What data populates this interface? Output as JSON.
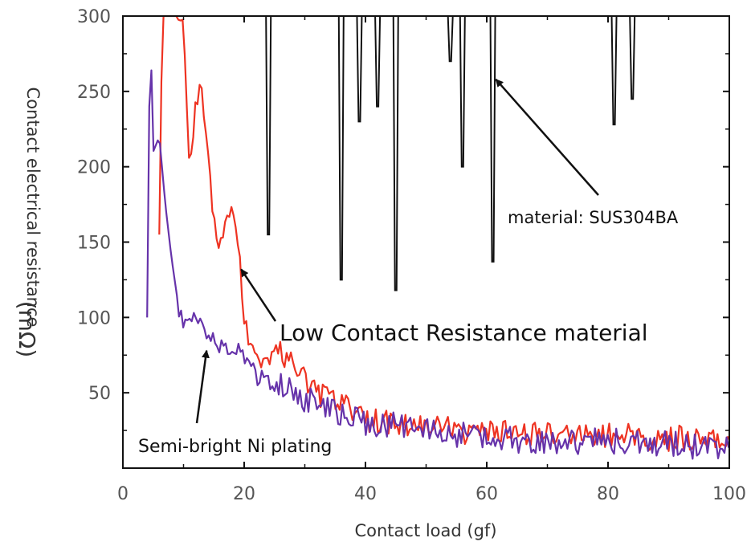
{
  "chart_data": {
    "type": "line",
    "title": "",
    "xlabel": "Contact load (gf)",
    "ylabel": "Contact electrical resistance",
    "ylabel_unit": "(mΩ)",
    "xlim": [
      0,
      100
    ],
    "ylim": [
      0,
      300
    ],
    "x_ticks": [
      "0",
      "20",
      "40",
      "60",
      "80",
      "100"
    ],
    "y_ticks": [
      "50",
      "100",
      "150",
      "200",
      "250",
      "300"
    ],
    "grid": false,
    "series": [
      {
        "key": "sus",
        "color": "#111111",
        "dips": [
          [
            24,
            155
          ],
          [
            36,
            125
          ],
          [
            39,
            230
          ],
          [
            42,
            240
          ],
          [
            45,
            118
          ],
          [
            54,
            270
          ],
          [
            56,
            200
          ],
          [
            61,
            137
          ],
          [
            81,
            228
          ],
          [
            84,
            245
          ]
        ]
      },
      {
        "key": "lcr",
        "color": "#ee3322",
        "points": [
          [
            6,
            155
          ],
          [
            6.5,
            300
          ],
          [
            10,
            300
          ],
          [
            11,
            198
          ],
          [
            12,
            240
          ],
          [
            13,
            255
          ],
          [
            14,
            208
          ],
          [
            15,
            163
          ],
          [
            16,
            148
          ],
          [
            17,
            160
          ],
          [
            18,
            170
          ],
          [
            19,
            150
          ],
          [
            20,
            100
          ],
          [
            21,
            78
          ],
          [
            23,
            72
          ],
          [
            25,
            80
          ],
          [
            28,
            68
          ],
          [
            30,
            60
          ],
          [
            32,
            50
          ],
          [
            35,
            44
          ],
          [
            38,
            38
          ],
          [
            40,
            33
          ],
          [
            45,
            30
          ],
          [
            50,
            27
          ],
          [
            55,
            25
          ],
          [
            60,
            23
          ],
          [
            70,
            22
          ],
          [
            80,
            22
          ],
          [
            90,
            20
          ],
          [
            100,
            20
          ]
        ]
      },
      {
        "key": "ni",
        "color": "#6633aa",
        "points": [
          [
            4,
            100
          ],
          [
            4.5,
            300
          ],
          [
            5,
            210
          ],
          [
            6,
            220
          ],
          [
            7,
            175
          ],
          [
            8,
            140
          ],
          [
            9,
            112
          ],
          [
            10,
            90
          ],
          [
            11,
            100
          ],
          [
            12,
            96
          ],
          [
            13,
            102
          ],
          [
            14,
            88
          ],
          [
            16,
            80
          ],
          [
            18,
            82
          ],
          [
            20,
            72
          ],
          [
            22,
            63
          ],
          [
            25,
            58
          ],
          [
            28,
            52
          ],
          [
            30,
            46
          ],
          [
            35,
            38
          ],
          [
            38,
            32
          ],
          [
            40,
            30
          ],
          [
            45,
            28
          ],
          [
            50,
            25
          ],
          [
            55,
            22
          ],
          [
            60,
            20
          ],
          [
            70,
            18
          ],
          [
            80,
            18
          ],
          [
            90,
            16
          ],
          [
            100,
            12
          ]
        ]
      }
    ],
    "annotations": [
      {
        "key": "sus",
        "text": "material: SUS304BA",
        "target": [
          61.5,
          258
        ]
      },
      {
        "key": "lcr",
        "text": "Low Contact Resistance material",
        "target": [
          19.5,
          132
        ]
      },
      {
        "key": "ni",
        "text": "Semi-bright Ni plating",
        "target": [
          13.8,
          78
        ]
      }
    ]
  }
}
